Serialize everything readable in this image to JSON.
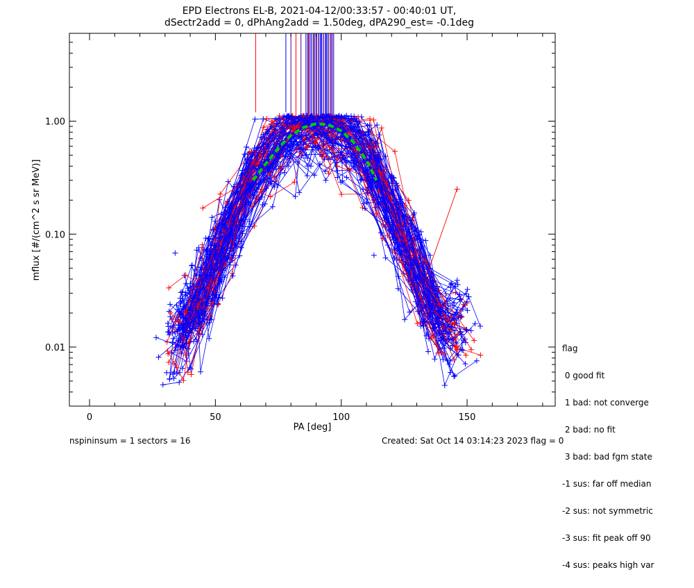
{
  "chart_data": {
    "type": "line",
    "title": "EPD Electrons EL-B, 2021-04-12/00:33:57 - 00:40:01 UT,",
    "subtitle": "dSectr2add = 0, dPhAng2add = 1.50deg, dPA290_est=  -0.1deg",
    "xlabel": "PA [deg]",
    "ylabel": "mflux [#/(cm^2 s sr MeV)]",
    "xlim": [
      -8,
      185
    ],
    "ylim": [
      0.003,
      6.0
    ],
    "yscale": "log",
    "xticks": [
      0,
      50,
      100,
      150
    ],
    "xtick_labels": [
      "0",
      "50",
      "100",
      "150"
    ],
    "yticks": [
      0.01,
      0.1,
      1.0
    ],
    "ytick_labels": [
      "0.01",
      "0.10",
      "1.00"
    ],
    "grid": false,
    "colors": {
      "red": "#ff0000",
      "blue": "#0000ff",
      "fit": "#00cc00",
      "spike": "#4b0082"
    },
    "profile": {
      "description_points": [
        [
          34,
          0.012
        ],
        [
          45,
          0.03
        ],
        [
          55,
          0.1
        ],
        [
          65,
          0.35
        ],
        [
          80,
          0.9
        ],
        [
          90,
          1.05
        ],
        [
          97,
          0.95
        ],
        [
          112,
          0.4
        ],
        [
          125,
          0.09
        ],
        [
          140,
          0.015
        ]
      ]
    },
    "fit_curve": {
      "name": "",
      "x": [
        65,
        70,
        75,
        80,
        85,
        90,
        95,
        100,
        105,
        110,
        114
      ],
      "y": [
        0.3,
        0.42,
        0.58,
        0.75,
        0.88,
        0.95,
        0.93,
        0.82,
        0.65,
        0.45,
        0.3
      ]
    },
    "spikes_x": [
      66,
      78,
      80,
      82,
      84,
      86,
      87,
      88,
      89,
      90,
      91,
      92,
      93,
      94,
      95,
      96,
      97
    ],
    "outliers": [
      {
        "x": 146,
        "y": 0.25,
        "color": "red"
      },
      {
        "x": 45,
        "y": 0.17,
        "color": "red"
      },
      {
        "x": 113,
        "y": 0.065,
        "color": "blue"
      },
      {
        "x": 34,
        "y": 0.068,
        "color": "blue"
      }
    ]
  },
  "legend": {
    "title": "flag",
    "items": [
      " 0 good fit",
      " 1 bad: not converge",
      " 2 bad: no fit",
      " 3 bad: bad fgm state",
      "-1 sus: far off median",
      "-2 sus: not symmetric",
      "-3 sus: fit peak off 90",
      "-4 sus: peaks high var"
    ]
  },
  "footer": {
    "left": "nspininsum =  1  sectors = 16",
    "right": "Created: Sat Oct 14 03:14:23 2023   flag = 0"
  }
}
